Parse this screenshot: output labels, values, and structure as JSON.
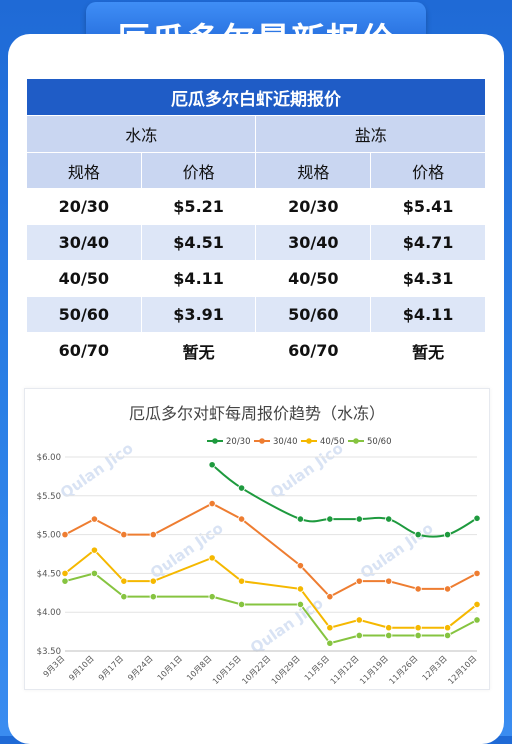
{
  "banner": {
    "title": "厄瓜多尔最新报价"
  },
  "table": {
    "title": "厄瓜多尔白虾近期报价",
    "groups": [
      "水冻",
      "盐冻"
    ],
    "headers": [
      "规格",
      "价格",
      "规格",
      "价格"
    ],
    "rows": [
      [
        "20/30",
        "$5.21",
        "20/30",
        "$5.41"
      ],
      [
        "30/40",
        "$4.51",
        "30/40",
        "$4.71"
      ],
      [
        "40/50",
        "$4.11",
        "40/50",
        "$4.31"
      ],
      [
        "50/60",
        "$3.91",
        "50/60",
        "$4.11"
      ],
      [
        "60/70",
        "暂无",
        "60/70",
        "暂无"
      ]
    ]
  },
  "watermark": {
    "text": "Qulan Jico"
  },
  "chart_data": {
    "type": "line",
    "title": "厄瓜多尔对虾每周报价趋势（水冻）",
    "x": [
      "9月3日",
      "9月10日",
      "9月17日",
      "9月24日",
      "10月1日",
      "10月8日",
      "10月15日",
      "10月22日",
      "10月29日",
      "11月5日",
      "11月12日",
      "11月19日",
      "11月26日",
      "12月3日",
      "12月10日"
    ],
    "ylim": [
      3.5,
      6.0
    ],
    "yticks": [
      3.5,
      4.0,
      4.5,
      5.0,
      5.5,
      6.0
    ],
    "ytick_labels": [
      "$3.50",
      "$4.00",
      "$4.50",
      "$5.00",
      "$5.50",
      "$6.00"
    ],
    "legend_position": "top-right",
    "grid": true,
    "series": [
      {
        "name": "20/30",
        "color": "#1e9a3e",
        "smooth": true,
        "points": [
          [
            5,
            5.9
          ],
          [
            6,
            5.6
          ],
          [
            8,
            5.2
          ],
          [
            9,
            5.2
          ],
          [
            10,
            5.2
          ],
          [
            11,
            5.2
          ],
          [
            12,
            5.0
          ],
          [
            13,
            5.0
          ],
          [
            14,
            5.21
          ]
        ]
      },
      {
        "name": "30/40",
        "color": "#ee7d31",
        "smooth": false,
        "points": [
          [
            0,
            5.0
          ],
          [
            1,
            5.2
          ],
          [
            2,
            5.0
          ],
          [
            3,
            5.0
          ],
          [
            5,
            5.4
          ],
          [
            6,
            5.2
          ],
          [
            8,
            4.6
          ],
          [
            9,
            4.2
          ],
          [
            10,
            4.4
          ],
          [
            11,
            4.4
          ],
          [
            12,
            4.3
          ],
          [
            13,
            4.3
          ],
          [
            14,
            4.5
          ]
        ]
      },
      {
        "name": "40/50",
        "color": "#f5b800",
        "smooth": false,
        "points": [
          [
            0,
            4.5
          ],
          [
            1,
            4.8
          ],
          [
            2,
            4.4
          ],
          [
            3,
            4.4
          ],
          [
            5,
            4.7
          ],
          [
            6,
            4.4
          ],
          [
            8,
            4.3
          ],
          [
            9,
            3.8
          ],
          [
            10,
            3.9
          ],
          [
            11,
            3.8
          ],
          [
            12,
            3.8
          ],
          [
            13,
            3.8
          ],
          [
            14,
            4.1
          ]
        ]
      },
      {
        "name": "50/60",
        "color": "#86c440",
        "smooth": false,
        "points": [
          [
            0,
            4.4
          ],
          [
            1,
            4.5
          ],
          [
            2,
            4.2
          ],
          [
            3,
            4.2
          ],
          [
            5,
            4.2
          ],
          [
            6,
            4.1
          ],
          [
            8,
            4.1
          ],
          [
            9,
            3.6
          ],
          [
            10,
            3.7
          ],
          [
            11,
            3.7
          ],
          [
            12,
            3.7
          ],
          [
            13,
            3.7
          ],
          [
            14,
            3.9
          ]
        ]
      }
    ]
  }
}
